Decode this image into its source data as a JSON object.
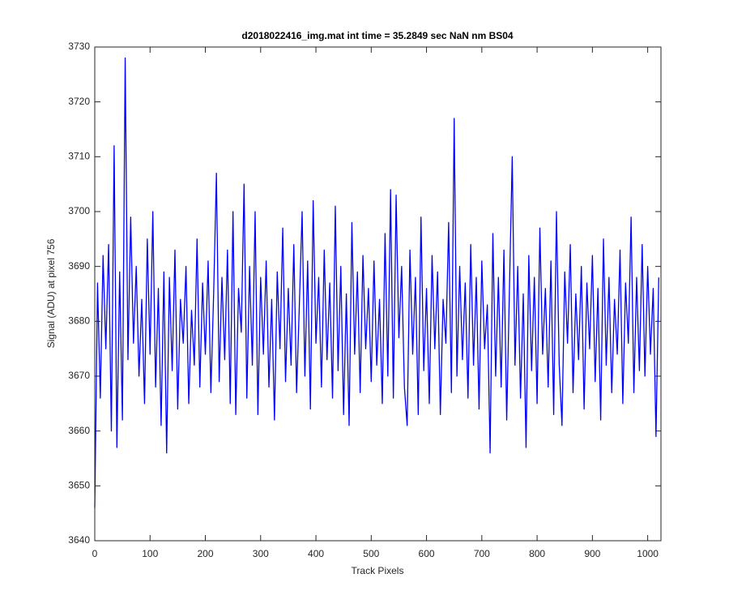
{
  "chart_data": {
    "type": "line",
    "title": "d2018022416_img.mat int time = 35.2849 sec  NaN nm BS04",
    "x_label": "Track Pixels",
    "y_label": "Signal (ADU) at pixel 756",
    "xlim": [
      0,
      1024
    ],
    "ylim": [
      3640,
      3730
    ],
    "xticks": [
      0,
      100,
      200,
      300,
      400,
      500,
      600,
      700,
      800,
      900,
      1000
    ],
    "yticks": [
      3640,
      3650,
      3660,
      3670,
      3680,
      3690,
      3700,
      3710,
      3720,
      3730
    ],
    "x": [
      0,
      5,
      10,
      15,
      20,
      25,
      30,
      35,
      40,
      45,
      50,
      55,
      60,
      65,
      70,
      75,
      80,
      85,
      90,
      95,
      100,
      105,
      110,
      115,
      120,
      125,
      130,
      135,
      140,
      145,
      150,
      155,
      160,
      165,
      170,
      175,
      180,
      185,
      190,
      195,
      200,
      205,
      210,
      215,
      220,
      225,
      230,
      235,
      240,
      245,
      250,
      255,
      260,
      265,
      270,
      275,
      280,
      285,
      290,
      295,
      300,
      305,
      310,
      315,
      320,
      325,
      330,
      335,
      340,
      345,
      350,
      355,
      360,
      365,
      370,
      375,
      380,
      385,
      390,
      395,
      400,
      405,
      410,
      415,
      420,
      425,
      430,
      435,
      440,
      445,
      450,
      455,
      460,
      465,
      470,
      475,
      480,
      485,
      490,
      495,
      500,
      505,
      510,
      515,
      520,
      525,
      530,
      535,
      540,
      545,
      550,
      555,
      560,
      565,
      570,
      575,
      580,
      585,
      590,
      595,
      600,
      605,
      610,
      615,
      620,
      625,
      630,
      635,
      640,
      645,
      650,
      655,
      660,
      665,
      670,
      675,
      680,
      685,
      690,
      695,
      700,
      705,
      710,
      715,
      720,
      725,
      730,
      735,
      740,
      745,
      750,
      755,
      760,
      765,
      770,
      775,
      780,
      785,
      790,
      795,
      800,
      805,
      810,
      815,
      820,
      825,
      830,
      835,
      840,
      845,
      850,
      855,
      860,
      865,
      870,
      875,
      880,
      885,
      890,
      895,
      900,
      905,
      910,
      915,
      920,
      925,
      930,
      935,
      940,
      945,
      950,
      955,
      960,
      965,
      970,
      975,
      980,
      985,
      990,
      995,
      1000,
      1005,
      1010,
      1015,
      1020
    ],
    "series": [
      {
        "color": "#0000ff",
        "values": [
          3646,
          3687,
          3666,
          3692,
          3675,
          3694,
          3660,
          3712,
          3657,
          3689,
          3662,
          3728,
          3673,
          3699,
          3676,
          3690,
          3670,
          3684,
          3665,
          3695,
          3674,
          3700,
          3668,
          3686,
          3661,
          3689,
          3656,
          3688,
          3671,
          3693,
          3664,
          3684,
          3676,
          3690,
          3665,
          3682,
          3672,
          3695,
          3668,
          3687,
          3674,
          3691,
          3667,
          3685,
          3707,
          3669,
          3688,
          3673,
          3693,
          3665,
          3700,
          3663,
          3686,
          3678,
          3705,
          3666,
          3690,
          3672,
          3700,
          3663,
          3688,
          3674,
          3691,
          3668,
          3684,
          3662,
          3689,
          3675,
          3697,
          3669,
          3686,
          3672,
          3694,
          3667,
          3683,
          3700,
          3670,
          3691,
          3664,
          3702,
          3676,
          3688,
          3668,
          3693,
          3673,
          3687,
          3666,
          3701,
          3671,
          3690,
          3663,
          3685,
          3661,
          3698,
          3674,
          3689,
          3667,
          3692,
          3675,
          3686,
          3669,
          3691,
          3672,
          3684,
          3665,
          3696,
          3670,
          3704,
          3666,
          3703,
          3677,
          3690,
          3668,
          3661,
          3693,
          3674,
          3688,
          3663,
          3699,
          3671,
          3686,
          3665,
          3692,
          3675,
          3689,
          3663,
          3684,
          3676,
          3698,
          3667,
          3717,
          3670,
          3690,
          3673,
          3687,
          3666,
          3694,
          3672,
          3688,
          3664,
          3691,
          3675,
          3683,
          3656,
          3696,
          3670,
          3688,
          3668,
          3693,
          3662,
          3686,
          3710,
          3672,
          3690,
          3666,
          3685,
          3657,
          3692,
          3671,
          3688,
          3665,
          3697,
          3674,
          3686,
          3668,
          3691,
          3663,
          3700,
          3672,
          3661,
          3689,
          3676,
          3694,
          3667,
          3685,
          3673,
          3690,
          3664,
          3687,
          3675,
          3692,
          3669,
          3686,
          3662,
          3695,
          3672,
          3688,
          3667,
          3684,
          3674,
          3693,
          3665,
          3687,
          3676,
          3699,
          3667,
          3688,
          3671,
          3694,
          3670,
          3690,
          3674,
          3686,
          3659,
          3688
        ]
      }
    ]
  }
}
